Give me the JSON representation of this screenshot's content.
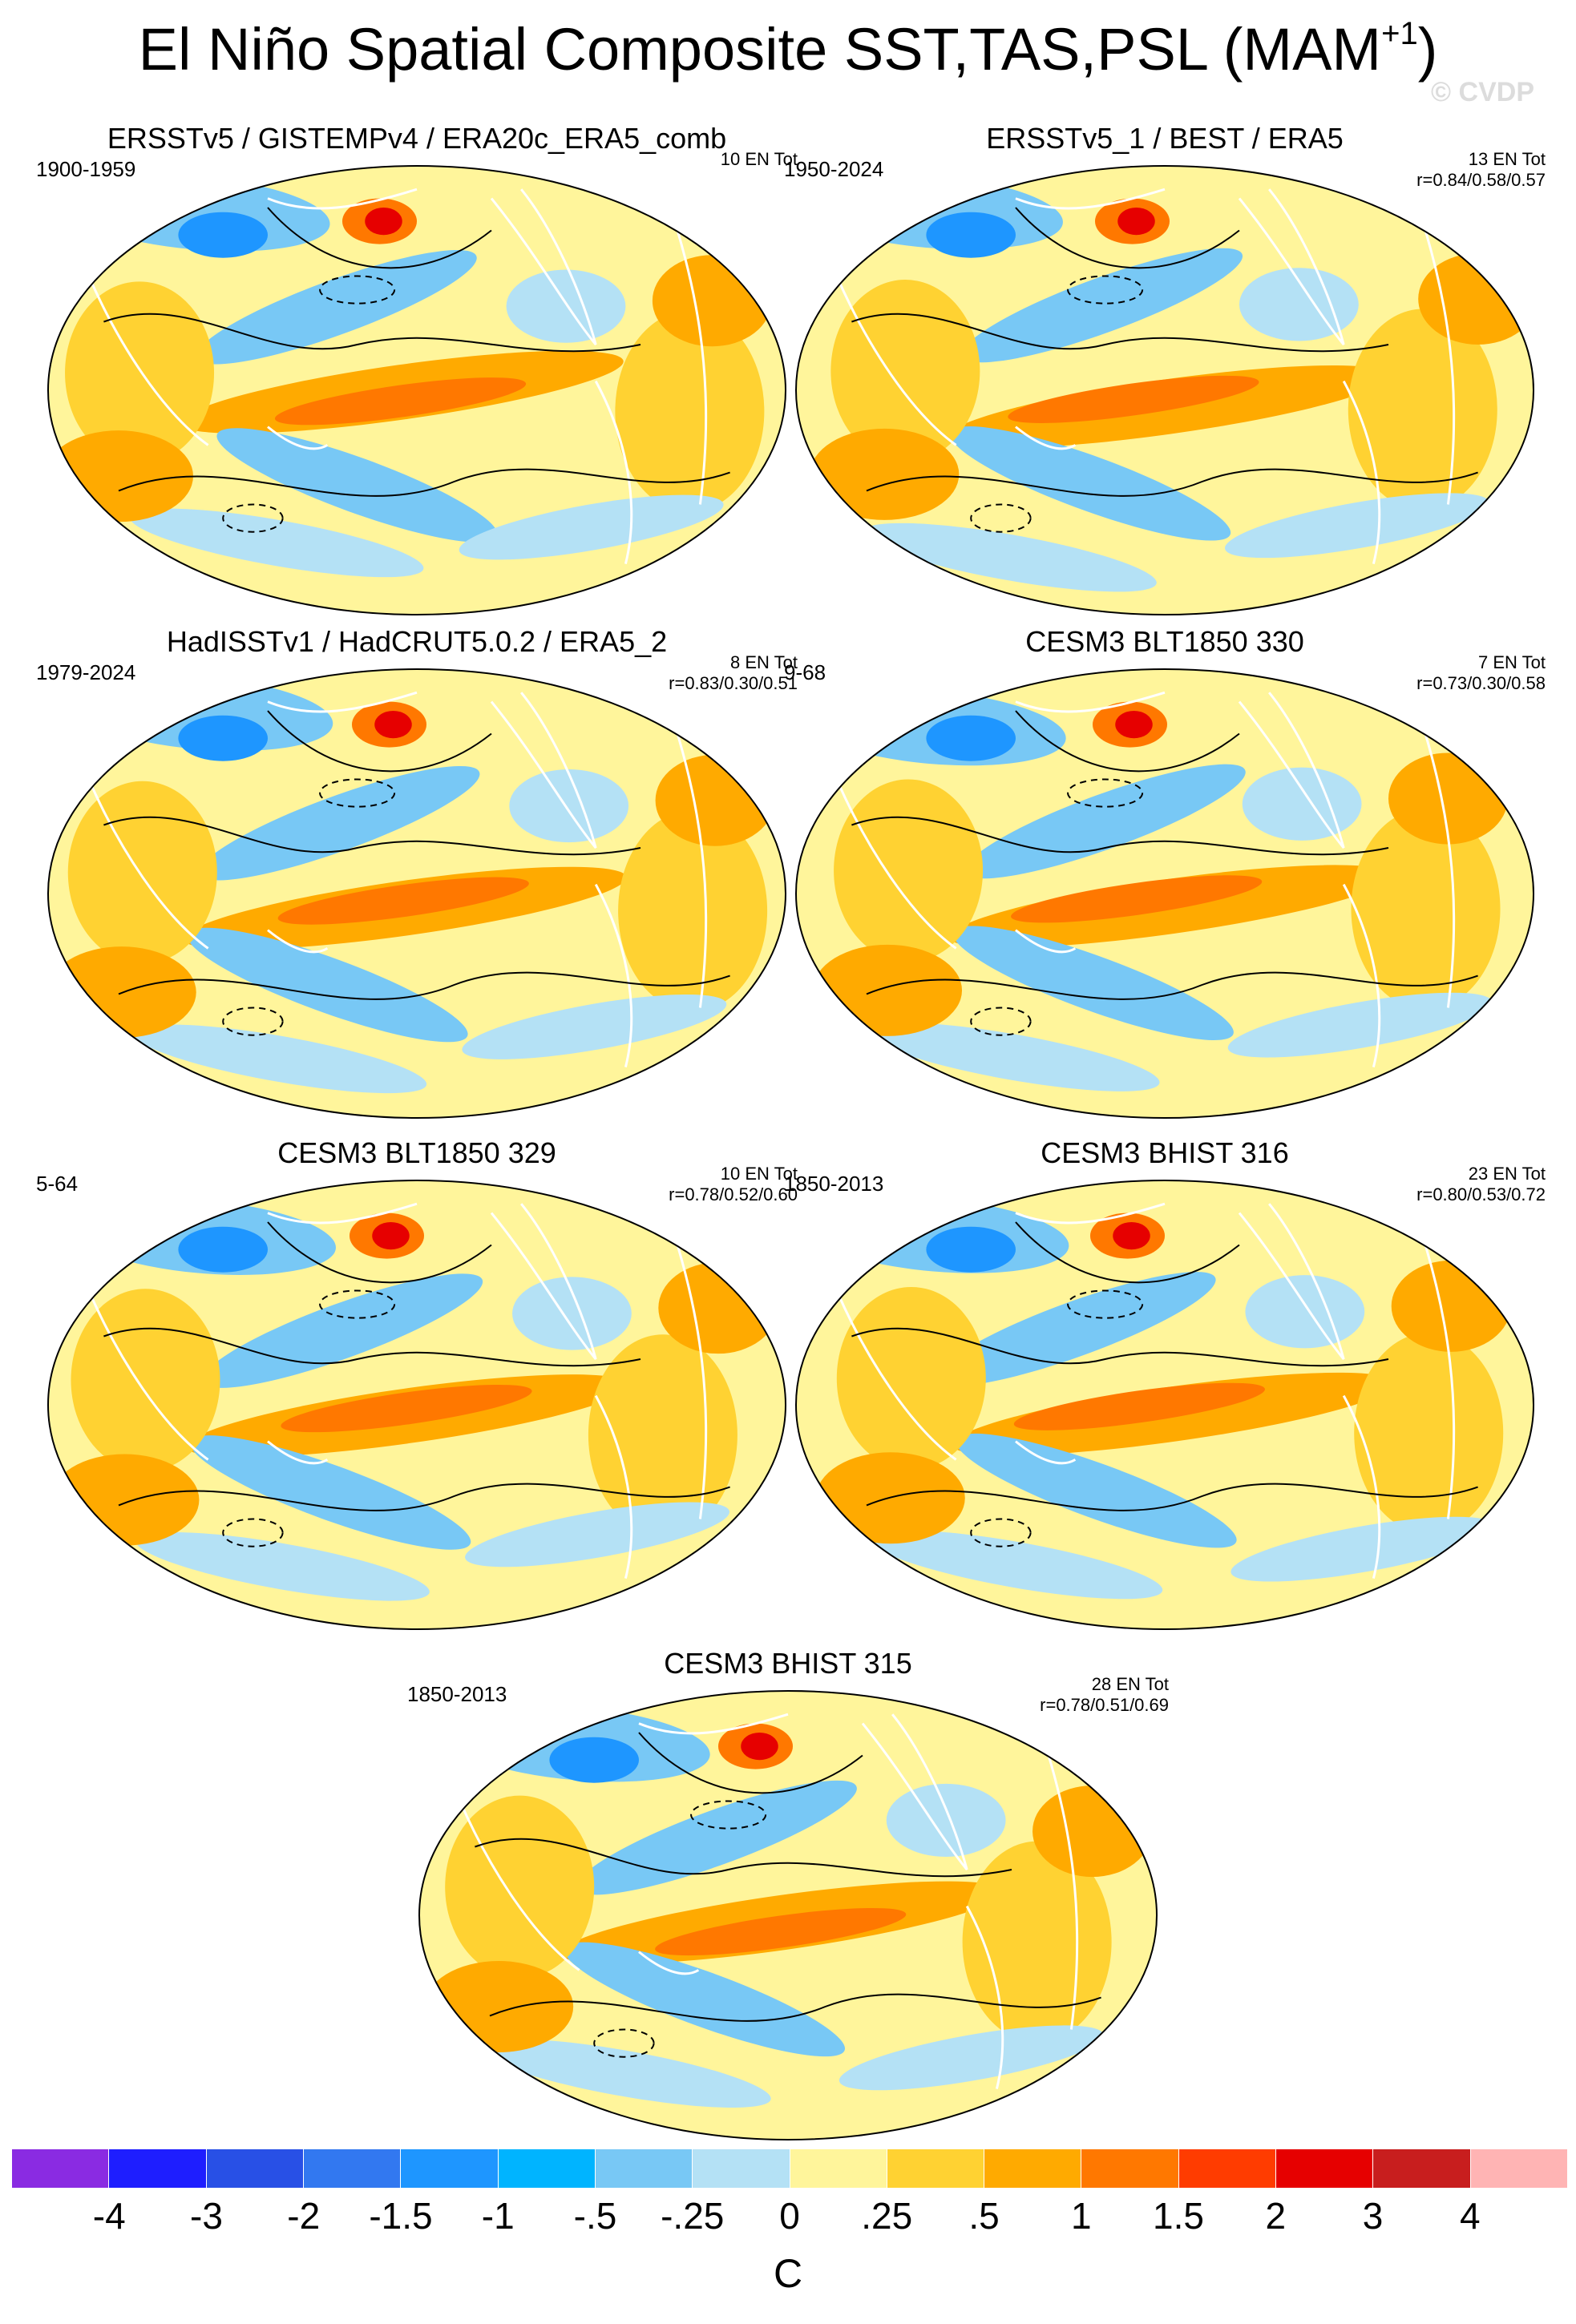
{
  "title": {
    "main": "El Niño Spatial Composite SST,TAS,PSL (MAM",
    "superscript": "+1",
    "closing": ")"
  },
  "watermark": "© CVDP",
  "panels": [
    {
      "title": "ERSSTv5 / GISTEMPv4 / ERA20c_ERA5_comb",
      "period": "1900-1959",
      "count": "10 EN Tot",
      "correlation": ""
    },
    {
      "title": "ERSSTv5_1 / BEST / ERA5",
      "period": "1950-2024",
      "count": "13 EN Tot",
      "correlation": "r=0.84/0.58/0.57"
    },
    {
      "title": "HadISSTv1 / HadCRUT5.0.2 / ERA5_2",
      "period": "1979-2024",
      "count": "8 EN Tot",
      "correlation": "r=0.83/0.30/0.51"
    },
    {
      "title": "CESM3 BLT1850 330",
      "period": "9-68",
      "count": "7 EN Tot",
      "correlation": "r=0.73/0.30/0.58"
    },
    {
      "title": "CESM3 BLT1850 329",
      "period": "5-64",
      "count": "10 EN Tot",
      "correlation": "r=0.78/0.52/0.60"
    },
    {
      "title": "CESM3 BHIST 316",
      "period": "1850-2013",
      "count": "23 EN Tot",
      "correlation": "r=0.80/0.53/0.72"
    },
    {
      "title": "CESM3 BHIST 315",
      "period": "1850-2013",
      "count": "28 EN Tot",
      "correlation": "r=0.78/0.51/0.69"
    }
  ],
  "colorbar": {
    "colors": [
      "#8a2be2",
      "#1e1eff",
      "#2850e6",
      "#3278f0",
      "#1e96ff",
      "#00b4ff",
      "#78c8f5",
      "#b4e1f5",
      "#fff59b",
      "#ffd232",
      "#ffaa00",
      "#ff7800",
      "#ff3c00",
      "#e60000",
      "#c81e1e",
      "#ffb4b4"
    ],
    "labels": [
      "-4",
      "-3",
      "-2",
      "-1.5",
      "-1",
      "-.5",
      "-.25",
      "0",
      ".25",
      ".5",
      "1",
      "1.5",
      "2",
      "3",
      "4"
    ],
    "units": "C"
  },
  "map_colors": {
    "neutral_warm": "#fff59b",
    "warm": "#ffd232",
    "warmer": "#ffaa00",
    "hot": "#ff7800",
    "hottest": "#e60000",
    "cool": "#b4e1f5",
    "cooler": "#78c8f5",
    "cold": "#1e96ff",
    "coldest": "#1e1eff",
    "land_outline": "#ffffff",
    "contour": "#000000"
  }
}
